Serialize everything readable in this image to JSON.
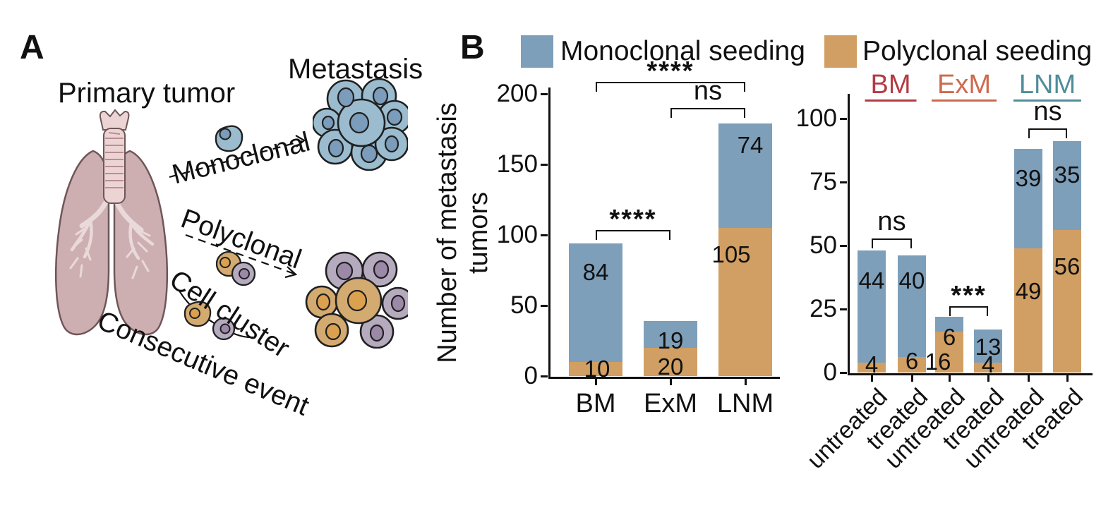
{
  "panel_a": {
    "label": "A",
    "primary_tumor_label": "Primary tumor",
    "metastasis_label": "Metastasis",
    "route_monoclonal": "Monoclonal",
    "route_polyclonal": "Polyclonal",
    "route_cell_cluster": "Cell cluster",
    "route_consecutive": "Consecutive event"
  },
  "panel_b": {
    "label": "B",
    "legend": [
      {
        "label": "Monoclonal seeding",
        "color": "#7e9fba"
      },
      {
        "label": "Polyclonal seeding",
        "color": "#d19f63"
      }
    ]
  },
  "chart_data": [
    {
      "type": "bar",
      "stacked": true,
      "ylabel": "Number of metastasis tumors",
      "categories": [
        "BM",
        "ExM",
        "LNM"
      ],
      "series": [
        {
          "name": "Monoclonal seeding",
          "color": "#7e9fba",
          "values": [
            84,
            19,
            74
          ]
        },
        {
          "name": "Polyclonal seeding",
          "color": "#d19f63",
          "values": [
            10,
            20,
            105
          ]
        }
      ],
      "stack_bottom_to_top": [
        "Polyclonal seeding",
        "Monoclonal seeding"
      ],
      "ylim": [
        0,
        200
      ],
      "yticks": [
        0,
        50,
        100,
        150,
        200
      ],
      "grid": false,
      "significance": [
        {
          "from_index": 0,
          "to_index": 2,
          "label": "****"
        },
        {
          "from_index": 1,
          "to_index": 2,
          "label": "ns"
        },
        {
          "from_index": 0,
          "to_index": 1,
          "label": "****"
        }
      ]
    },
    {
      "type": "bar",
      "stacked": true,
      "group_labels": [
        {
          "text": "BM",
          "color": "#b23b44"
        },
        {
          "text": "ExM",
          "color": "#cd6a4e"
        },
        {
          "text": "LNM",
          "color": "#4f8d9b"
        }
      ],
      "categories": [
        "untreated",
        "treated",
        "untreated",
        "treated",
        "untreated",
        "treated"
      ],
      "series": [
        {
          "name": "Monoclonal seeding",
          "color": "#7e9fba",
          "values": [
            44,
            40,
            6,
            13,
            39,
            35
          ]
        },
        {
          "name": "Polyclonal seeding",
          "color": "#d19f63",
          "values": [
            4,
            6,
            16,
            4,
            49,
            56
          ]
        }
      ],
      "stack_bottom_to_top": [
        "Polyclonal seeding",
        "Monoclonal seeding"
      ],
      "ylim": [
        0,
        100
      ],
      "yticks": [
        0,
        25,
        50,
        75,
        100
      ],
      "grid": false,
      "significance": [
        {
          "from_index": 0,
          "to_index": 1,
          "label": "ns"
        },
        {
          "from_index": 2,
          "to_index": 3,
          "label": "***"
        },
        {
          "from_index": 4,
          "to_index": 5,
          "label": "ns"
        }
      ]
    }
  ]
}
